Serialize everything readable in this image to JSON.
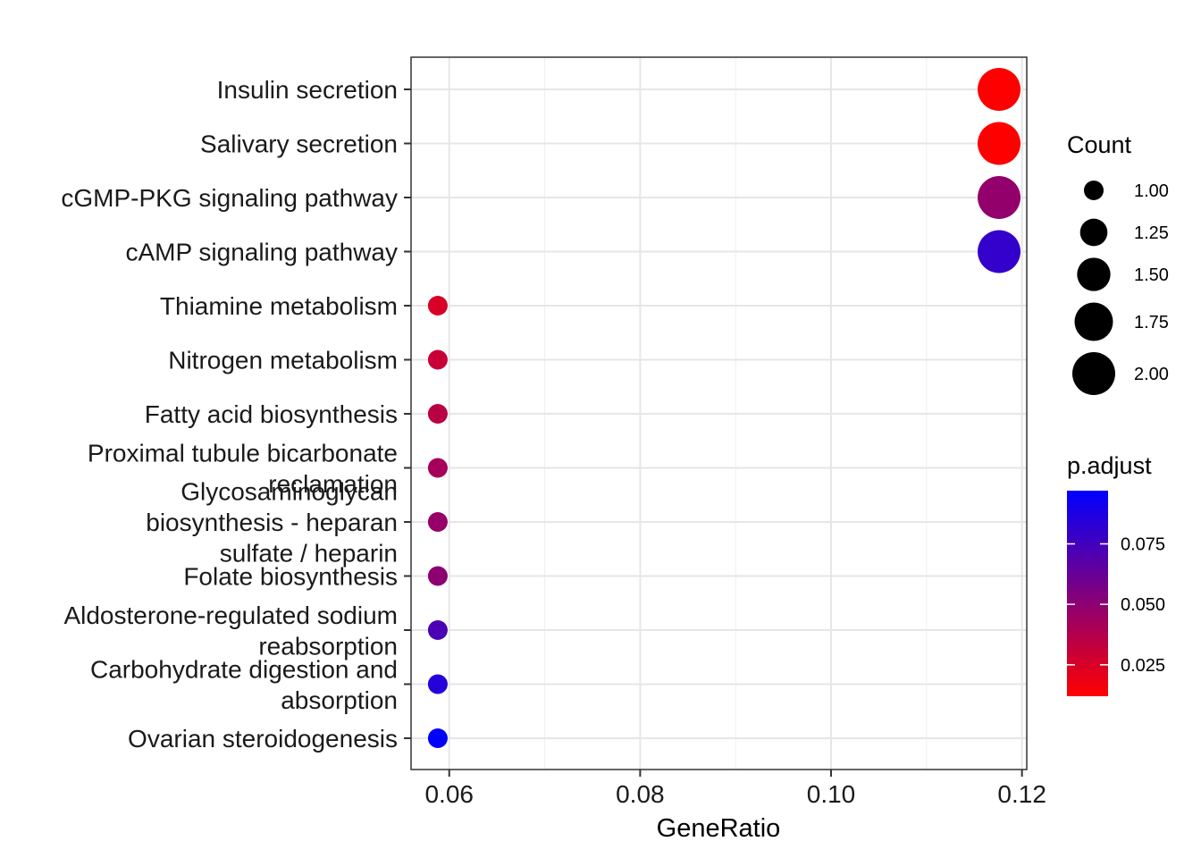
{
  "chart_data": {
    "type": "scatter",
    "title": "",
    "xlabel": "GeneRatio",
    "ylabel": "",
    "xlim": [
      0.056,
      0.1205
    ],
    "x_ticks": [
      "0.06",
      "0.08",
      "0.10",
      "0.12"
    ],
    "x_tick_values": [
      0.06,
      0.08,
      0.1,
      0.12
    ],
    "grid": true,
    "categories": [
      "Insulin secretion",
      "Salivary secretion",
      "cGMP-PKG signaling pathway",
      "cAMP signaling pathway",
      "Thiamine metabolism",
      "Nitrogen metabolism",
      "Fatty acid biosynthesis",
      "Proximal tubule bicarbonate reclamation",
      "Glycosaminoglycan biosynthesis - heparan sulfate / heparin",
      "Folate biosynthesis",
      "Aldosterone-regulated sodium reabsorption",
      "Carbohydrate digestion and absorption",
      "Ovarian steroidogenesis"
    ],
    "category_label_lines": [
      [
        "Insulin secretion"
      ],
      [
        "Salivary secretion"
      ],
      [
        "cGMP-PKG signaling pathway"
      ],
      [
        "cAMP signaling pathway"
      ],
      [
        "Thiamine metabolism"
      ],
      [
        "Nitrogen metabolism"
      ],
      [
        "Fatty acid biosynthesis"
      ],
      [
        "Proximal tubule bicarbonate",
        "reclamation"
      ],
      [
        "Glycosaminoglycan",
        "biosynthesis - heparan",
        "sulfate / heparin"
      ],
      [
        "Folate biosynthesis"
      ],
      [
        "Aldosterone-regulated sodium",
        "reabsorption"
      ],
      [
        "Carbohydrate digestion and",
        "absorption"
      ],
      [
        "Ovarian steroidogenesis"
      ]
    ],
    "points": [
      {
        "category": "Insulin secretion",
        "gene_ratio": 0.1176,
        "count": 2,
        "p_adjust": 0.012
      },
      {
        "category": "Salivary secretion",
        "gene_ratio": 0.1176,
        "count": 2,
        "p_adjust": 0.012
      },
      {
        "category": "cGMP-PKG signaling pathway",
        "gene_ratio": 0.1176,
        "count": 2,
        "p_adjust": 0.048
      },
      {
        "category": "cAMP signaling pathway",
        "gene_ratio": 0.1176,
        "count": 2,
        "p_adjust": 0.08
      },
      {
        "category": "Thiamine metabolism",
        "gene_ratio": 0.0588,
        "count": 1,
        "p_adjust": 0.025
      },
      {
        "category": "Nitrogen metabolism",
        "gene_ratio": 0.0588,
        "count": 1,
        "p_adjust": 0.03
      },
      {
        "category": "Fatty acid biosynthesis",
        "gene_ratio": 0.0588,
        "count": 1,
        "p_adjust": 0.035
      },
      {
        "category": "Proximal tubule bicarbonate reclamation",
        "gene_ratio": 0.0588,
        "count": 1,
        "p_adjust": 0.042
      },
      {
        "category": "Glycosaminoglycan biosynthesis - heparan sulfate / heparin",
        "gene_ratio": 0.0588,
        "count": 1,
        "p_adjust": 0.047
      },
      {
        "category": "Folate biosynthesis",
        "gene_ratio": 0.0588,
        "count": 1,
        "p_adjust": 0.05
      },
      {
        "category": "Aldosterone-regulated sodium reabsorption",
        "gene_ratio": 0.0588,
        "count": 1,
        "p_adjust": 0.072
      },
      {
        "category": "Carbohydrate digestion and absorption",
        "gene_ratio": 0.0588,
        "count": 1,
        "p_adjust": 0.085
      },
      {
        "category": "Ovarian steroidogenesis",
        "gene_ratio": 0.0588,
        "count": 1,
        "p_adjust": 0.097
      }
    ],
    "size_legend": {
      "title": "Count",
      "values": [
        1.0,
        1.25,
        1.5,
        1.75,
        2.0
      ],
      "labels": [
        "1.00",
        "1.25",
        "1.50",
        "1.75",
        "2.00"
      ]
    },
    "color_legend": {
      "title": "p.adjust",
      "range": [
        0.012,
        0.097
      ],
      "tick_values": [
        0.025,
        0.05,
        0.075
      ],
      "tick_labels": [
        "0.025",
        "0.050",
        "0.075"
      ],
      "low_color": "#ff0000",
      "high_color": "#0000ff"
    }
  }
}
